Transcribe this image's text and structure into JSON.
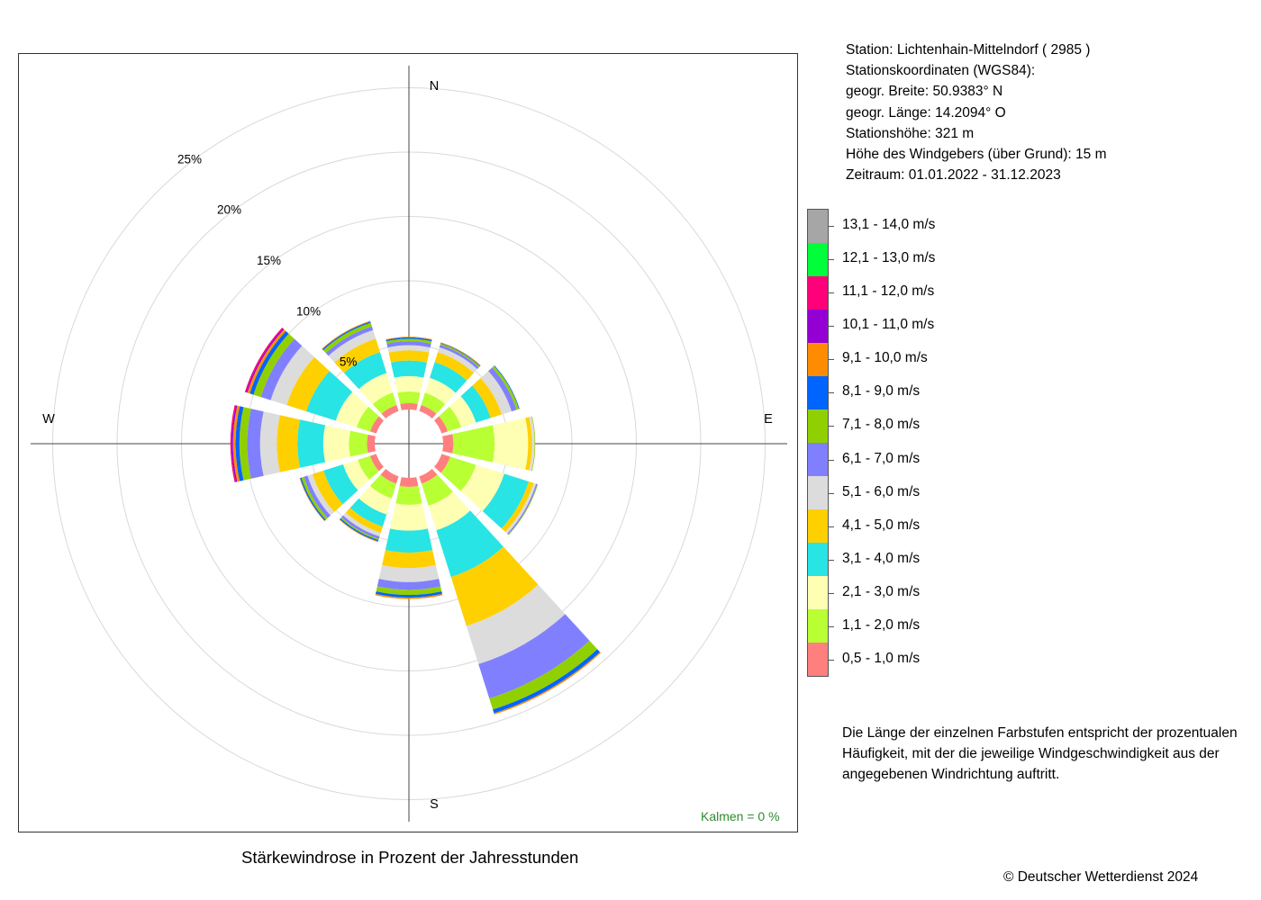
{
  "station": {
    "line1": "Station:  Lichtenhain-Mittelndorf  ( 2985 )",
    "line2": "Stationskoordinaten (WGS84):",
    "line3": "geogr. Breite: 50.9383° N",
    "line4": "geogr. Länge: 14.2094° O",
    "line5": "Stationshöhe: 321 m",
    "line6": "Höhe des Windgebers (über Grund): 15 m",
    "line7": "Zeitraum: 01.01.2022 - 31.12.2023"
  },
  "legend": {
    "items": [
      {
        "label": "13,1 - 14,0 m/s",
        "color": "#a6a6a6"
      },
      {
        "label": "12,1 - 13,0 m/s",
        "color": "#00ff3a"
      },
      {
        "label": "11,1 - 12,0 m/s",
        "color": "#ff007a"
      },
      {
        "label": "10,1 - 11,0 m/s",
        "color": "#9400d3"
      },
      {
        "label": "9,1 - 10,0 m/s",
        "color": "#ff8c00"
      },
      {
        "label": "8,1 - 9,0 m/s",
        "color": "#0064ff"
      },
      {
        "label": "7,1 - 8,0 m/s",
        "color": "#90d000"
      },
      {
        "label": "6,1 - 7,0 m/s",
        "color": "#8080ff"
      },
      {
        "label": "5,1 - 6,0 m/s",
        "color": "#dcdcdc"
      },
      {
        "label": "4,1 - 5,0 m/s",
        "color": "#ffd000"
      },
      {
        "label": "3,1 - 4,0 m/s",
        "color": "#28e4e4"
      },
      {
        "label": "2,1 - 3,0 m/s",
        "color": "#ffffb3"
      },
      {
        "label": "1,1 - 2,0 m/s",
        "color": "#b8ff33"
      },
      {
        "label": "0,5 - 1,0 m/s",
        "color": "#ff7f7f"
      }
    ]
  },
  "note": "Die Länge der einzelnen Farbstufen entspricht der prozentualen Häufigkeit, mit der die jeweilige Windgeschwindigkeit aus der angegebenen Windrichtung auftritt.",
  "caption": "Stärkewindrose in Prozent der Jahresstunden",
  "copyright": "© Deutscher Wetterdienst  2024",
  "calm": "Kalmen  =  0 %",
  "chart_data": {
    "type": "wind-rose",
    "title": "Stärkewindrose in Prozent der Jahresstunden",
    "unit": "%",
    "rlim": [
      0,
      25
    ],
    "ring_labels": [
      "5%",
      "10%",
      "15%",
      "20%",
      "25%"
    ],
    "ring_values": [
      5,
      10,
      15,
      20,
      25
    ],
    "cardinal_labels": {
      "N": "N",
      "E": "E",
      "S": "S",
      "W": "W"
    },
    "calm_percent": 0,
    "speed_classes": [
      "0,5 - 1,0 m/s",
      "1,1 - 2,0 m/s",
      "2,1 - 3,0 m/s",
      "3,1 - 4,0 m/s",
      "4,1 - 5,0 m/s",
      "5,1 - 6,0 m/s",
      "6,1 - 7,0 m/s",
      "7,1 - 8,0 m/s",
      "8,1 - 9,0 m/s",
      "9,1 - 10,0 m/s",
      "10,1 - 11,0 m/s",
      "11,1 - 12,0 m/s",
      "12,1 - 13,0 m/s",
      "13,1 - 14,0 m/s"
    ],
    "colors": [
      "#ff7f7f",
      "#b8ff33",
      "#ffffb3",
      "#28e4e4",
      "#ffd000",
      "#dcdcdc",
      "#8080ff",
      "#90d000",
      "#0064ff",
      "#ff8c00",
      "#9400d3",
      "#ff007a",
      "#00ff3a",
      "#a6a6a6"
    ],
    "sectors": [
      {
        "direction": 0,
        "values": [
          0.5,
          0.9,
          1.2,
          1.2,
          0.8,
          0.4,
          0.3,
          0.2,
          0.1,
          0.05,
          0,
          0,
          0,
          0
        ]
      },
      {
        "direction": 30,
        "values": [
          0.5,
          1.0,
          1.2,
          1.3,
          0.8,
          0.4,
          0.2,
          0.1,
          0.05,
          0.05,
          0,
          0,
          0,
          0
        ]
      },
      {
        "direction": 60,
        "values": [
          0.5,
          1.1,
          1.2,
          1.2,
          0.9,
          0.8,
          0.4,
          0.2,
          0.05,
          0,
          0,
          0,
          0,
          0
        ]
      },
      {
        "direction": 90,
        "values": [
          0.8,
          3.2,
          2.6,
          0,
          0.3,
          0.2,
          0,
          0.05,
          0,
          0,
          0,
          0,
          0,
          0
        ]
      },
      {
        "direction": 120,
        "values": [
          0.7,
          2.1,
          2.3,
          2.0,
          0.4,
          0.2,
          0.1,
          0.05,
          0,
          0,
          0,
          0,
          0,
          0
        ]
      },
      {
        "direction": 150,
        "values": [
          0.6,
          1.8,
          2.0,
          3.8,
          4.0,
          3.1,
          2.8,
          0.9,
          0.3,
          0.1,
          0,
          0,
          0,
          0
        ]
      },
      {
        "direction": 180,
        "values": [
          0.7,
          1.4,
          2.0,
          1.7,
          1.2,
          1.1,
          0.6,
          0.4,
          0.2,
          0.1,
          0,
          0,
          0,
          0
        ]
      },
      {
        "direction": 210,
        "values": [
          0.6,
          1.2,
          1.3,
          1.0,
          0.5,
          0.3,
          0.2,
          0.1,
          0.1,
          0.05,
          0,
          0,
          0,
          0
        ]
      },
      {
        "direction": 240,
        "values": [
          0.5,
          1.0,
          1.2,
          1.6,
          0.9,
          0.4,
          0.3,
          0.2,
          0.1,
          0.05,
          0,
          0,
          0,
          0
        ]
      },
      {
        "direction": 270,
        "values": [
          0.6,
          1.4,
          2.0,
          2.0,
          1.6,
          1.3,
          1.0,
          0.6,
          0.3,
          0.2,
          0.1,
          0.1,
          0,
          0
        ]
      },
      {
        "direction": 300,
        "values": [
          0.5,
          1.1,
          1.7,
          2.4,
          1.6,
          1.3,
          0.8,
          0.6,
          0.3,
          0.2,
          0.1,
          0.1,
          0,
          0
        ]
      },
      {
        "direction": 330,
        "values": [
          0.5,
          1.0,
          1.6,
          1.7,
          1.1,
          0.7,
          0.3,
          0.3,
          0.1,
          0.05,
          0,
          0,
          0,
          0
        ]
      }
    ]
  }
}
